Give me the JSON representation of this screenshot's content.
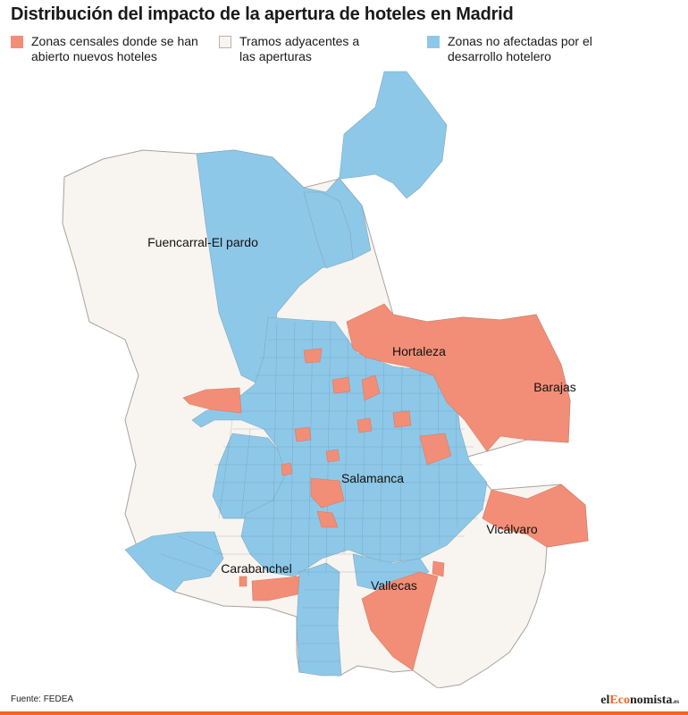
{
  "title": "Distribución del impacto de la apertura de hoteles en Madrid",
  "legend": [
    {
      "label_line1": "Zonas censales donde se han",
      "label_line2": "abierto nuevos hoteles",
      "color": "#f28e77"
    },
    {
      "label_line1": "Tramos adyacentes a",
      "label_line2": "las aperturas",
      "color": "#f8f4f0"
    },
    {
      "label_line1": "Zonas no afectadas por el",
      "label_line2": "desarrollo hotelero",
      "color": "#8ec8e8"
    }
  ],
  "districts": [
    {
      "name": "Fuencarral-El pardo"
    },
    {
      "name": "Hortaleza"
    },
    {
      "name": "Barajas"
    },
    {
      "name": "Salamanca"
    },
    {
      "name": "Vicálvaro"
    },
    {
      "name": "Carabanchel"
    },
    {
      "name": "Vallecas"
    }
  ],
  "source": "Fuente: FEDEA",
  "brand": {
    "part1": "el",
    "part2": "Eco",
    "part3": "nomista",
    "tld": ".es"
  }
}
